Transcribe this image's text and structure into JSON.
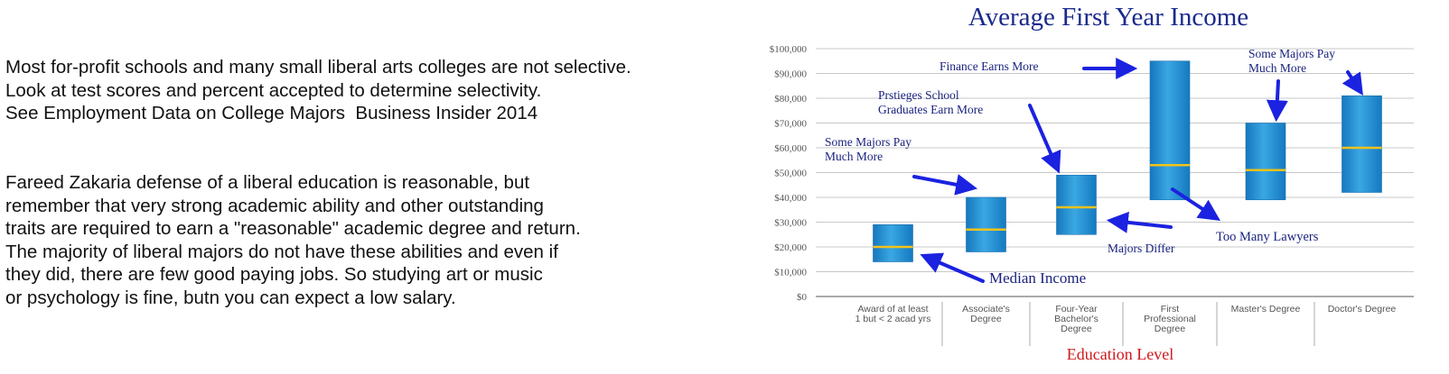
{
  "paragraphs": [
    [
      "Most for-profit schools and many small liberal arts colleges are not selective.",
      "Look at test scores and percent accepted to determine selectivity.",
      "See Employment Data on College Majors  Business Insider 2014"
    ],
    [
      "Fareed Zakaria defense of a liberal education is reasonable, but",
      "remember that very strong academic ability and other outstanding",
      "traits are required to earn a \"reasonable\" academic degree and return.",
      "The majority of liberal majors do not have these abilities and even if",
      "they did, there are few good paying jobs. So studying art or music",
      "or psychology is fine, butn you can expect a low salary."
    ]
  ],
  "chart_data": {
    "type": "floating-bar",
    "title": "Average First Year Income",
    "xlabel": "Education Level",
    "ylabel": "",
    "ylim": [
      0,
      100000
    ],
    "yticks": [
      0,
      10000,
      20000,
      30000,
      40000,
      50000,
      60000,
      70000,
      80000,
      90000,
      100000
    ],
    "ytick_labels": [
      "$0",
      "$10,000",
      "$20,000",
      "$30,000",
      "$40,000",
      "$50,000",
      "$60,000",
      "$70,000",
      "$80,000",
      "$90,000",
      "$100,000"
    ],
    "grid": true,
    "categories": [
      [
        "Award of at least",
        "1 but < 2 acad yrs"
      ],
      [
        "Associate's",
        "Degree"
      ],
      [
        "Four-Year",
        "Bachelor's",
        "Degree"
      ],
      [
        "First",
        "Professional",
        "Degree"
      ],
      [
        "Master's Degree"
      ],
      [
        "Doctor's Degree"
      ]
    ],
    "ranges": [
      {
        "low": 14000,
        "high": 29000,
        "median": 20000
      },
      {
        "low": 18000,
        "high": 40000,
        "median": 27000
      },
      {
        "low": 25000,
        "high": 49000,
        "median": 36000
      },
      {
        "low": 39000,
        "high": 95000,
        "median": 53000
      },
      {
        "low": 39000,
        "high": 70000,
        "median": 51000
      },
      {
        "low": 42000,
        "high": 81000,
        "median": 60000
      }
    ],
    "annotations": [
      [
        "Finance Earns More"
      ],
      [
        "Some Majors Pay",
        "Much More"
      ],
      [
        "Prstieges School",
        "Graduates Earn More"
      ],
      [
        "Some Majors Pay",
        " Much More"
      ],
      [
        "Too Many Lawyers"
      ],
      [
        "Majors Differ"
      ],
      [
        "Median Income"
      ]
    ],
    "colors": {
      "bar": "#1c8fd3",
      "median": "#f2c21b",
      "arrow": "#1b22e0",
      "annotation_text": "#1a237e",
      "title": "#1a2a8c",
      "xlabel": "#d0191d",
      "axis_text": "#555555"
    }
  }
}
